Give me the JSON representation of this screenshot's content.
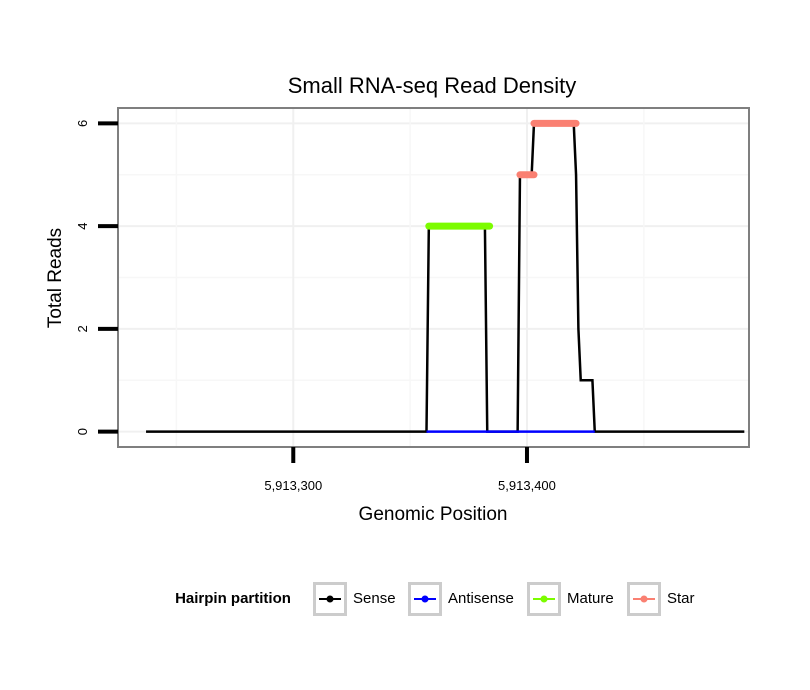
{
  "chart_data": {
    "type": "line",
    "title": "Small RNA-seq Read Density",
    "xlabel": "Genomic Position",
    "ylabel": "Total Reads",
    "xlim": [
      5913225,
      5913495
    ],
    "ylim": [
      -0.3,
      6.3
    ],
    "x_ticks": [
      {
        "value": 5913300,
        "label": "5,913,300"
      },
      {
        "value": 5913400,
        "label": "5,913,400"
      }
    ],
    "y_ticks": [
      {
        "value": 0,
        "label": "0"
      },
      {
        "value": 2,
        "label": "2"
      },
      {
        "value": 4,
        "label": "4"
      },
      {
        "value": 6,
        "label": "6"
      }
    ],
    "legend": {
      "title": "Hairpin partition",
      "position": "bottom",
      "entries": [
        {
          "name": "Sense",
          "color": "#000000"
        },
        {
          "name": "Antisense",
          "color": "#0000ff"
        },
        {
          "name": "Mature",
          "color": "#7cfc00"
        },
        {
          "name": "Star",
          "color": "#fa8072"
        }
      ]
    },
    "series": [
      {
        "name": "Sense",
        "color": "#000000",
        "points": [
          [
            5913237,
            0
          ],
          [
            5913357,
            0
          ],
          [
            5913358,
            4
          ],
          [
            5913382,
            4
          ],
          [
            5913383,
            0
          ],
          [
            5913396,
            0
          ],
          [
            5913397,
            5
          ],
          [
            5913402,
            5
          ],
          [
            5913403,
            6
          ],
          [
            5913420,
            6
          ],
          [
            5913421,
            5
          ],
          [
            5913422,
            2
          ],
          [
            5913423,
            1
          ],
          [
            5913428,
            1
          ],
          [
            5913429,
            0
          ],
          [
            5913493,
            0
          ]
        ]
      },
      {
        "name": "Antisense",
        "color": "#0000ff",
        "points": [
          [
            5913357,
            0
          ],
          [
            5913429,
            0
          ]
        ]
      },
      {
        "name": "Mature",
        "color": "#7cfc00",
        "points": [
          [
            5913358,
            4
          ],
          [
            5913384,
            4
          ]
        ]
      },
      {
        "name": "Star",
        "color": "#fa8072",
        "segments": [
          {
            "points": [
              [
                5913397,
                5
              ],
              [
                5913403,
                5
              ]
            ]
          },
          {
            "points": [
              [
                5913403,
                6
              ],
              [
                5913421,
                6
              ]
            ]
          }
        ]
      }
    ]
  }
}
